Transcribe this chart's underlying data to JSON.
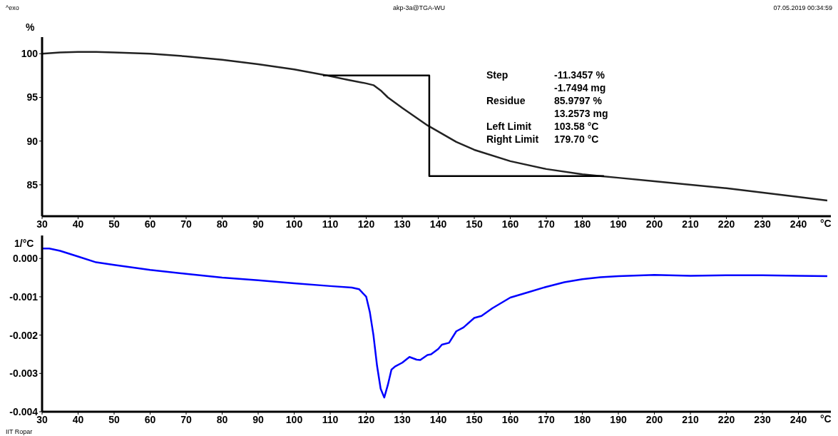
{
  "chart_data": [
    {
      "type": "line",
      "title": "akp-3a@TGA-WU",
      "ylabel": "%",
      "xlabel": "°C",
      "xlim": [
        30,
        249
      ],
      "xticks": [
        30,
        40,
        50,
        60,
        70,
        80,
        90,
        100,
        110,
        120,
        130,
        140,
        150,
        160,
        170,
        180,
        190,
        200,
        210,
        220,
        230,
        240
      ],
      "ylim": [
        81.4,
        101.9
      ],
      "yticks": [
        85,
        90,
        95,
        100
      ],
      "annotations": [
        "^exo",
        "07.05.2019 00:34:59",
        "Step",
        "-11.3457 %",
        "-1.7494 mg",
        "Residue",
        "85.9797 %",
        "13.2573 mg",
        "Left Limit",
        "103.58 °C",
        "Right Limit",
        "179.70 °C"
      ],
      "series": [
        {
          "color": "#222222",
          "x": [
            30,
            35,
            40,
            45,
            50,
            60,
            70,
            80,
            90,
            100,
            108,
            115,
            120,
            122,
            124,
            126,
            130,
            137,
            145,
            150,
            160,
            170,
            180,
            185,
            190,
            200,
            220,
            240,
            248
          ],
          "values": [
            100.0,
            100.15,
            100.2,
            100.2,
            100.15,
            100.0,
            99.7,
            99.3,
            98.8,
            98.2,
            97.6,
            97.0,
            96.6,
            96.4,
            95.8,
            95.0,
            93.8,
            91.8,
            89.9,
            89.0,
            87.7,
            86.8,
            86.2,
            86.0,
            85.8,
            85.4,
            84.6,
            83.6,
            83.2
          ]
        },
        {
          "color": "#000000",
          "x": [
            108,
            137.5,
            137.5,
            186
          ],
          "values": [
            97.5,
            97.5,
            86,
            86
          ]
        }
      ]
    },
    {
      "type": "line",
      "ylabel": "1/°C",
      "xlabel": "°C",
      "xlim": [
        30,
        249
      ],
      "xticks": [
        30,
        40,
        50,
        60,
        70,
        80,
        90,
        100,
        110,
        120,
        130,
        140,
        150,
        160,
        170,
        180,
        190,
        200,
        210,
        220,
        230,
        240
      ],
      "ylim": [
        -0.004,
        0.0006
      ],
      "yticks": [
        -0.004,
        -0.003,
        -0.002,
        -0.001,
        {
          "value": 0,
          "label": "0.000"
        }
      ],
      "annotations": [
        "IIT Ropar"
      ],
      "series": [
        {
          "color": "#0000ff",
          "x": [
            30,
            32,
            35,
            40,
            45,
            50,
            60,
            70,
            80,
            90,
            100,
            110,
            116,
            118,
            120,
            121,
            122,
            123,
            124,
            125,
            126,
            127,
            128,
            130,
            132,
            134,
            135,
            137,
            138,
            140,
            141,
            143,
            145,
            147,
            150,
            152,
            155,
            160,
            165,
            170,
            175,
            180,
            185,
            190,
            200,
            210,
            220,
            230,
            240,
            248
          ],
          "values": [
            0.00026,
            0.00026,
            0.0002,
            5e-05,
            -0.0001,
            -0.00017,
            -0.0003,
            -0.0004,
            -0.0005,
            -0.00057,
            -0.00065,
            -0.00072,
            -0.00076,
            -0.0008,
            -0.001,
            -0.0014,
            -0.002,
            -0.0028,
            -0.0034,
            -0.00363,
            -0.0033,
            -0.0029,
            -0.00282,
            -0.00272,
            -0.00257,
            -0.00264,
            -0.00265,
            -0.00252,
            -0.0025,
            -0.00236,
            -0.00225,
            -0.0022,
            -0.0019,
            -0.0018,
            -0.00155,
            -0.0015,
            -0.0013,
            -0.00102,
            -0.00088,
            -0.00074,
            -0.00062,
            -0.00054,
            -0.00049,
            -0.00046,
            -0.00043,
            -0.00045,
            -0.00044,
            -0.00044,
            -0.00045,
            -0.00046
          ]
        }
      ]
    }
  ]
}
